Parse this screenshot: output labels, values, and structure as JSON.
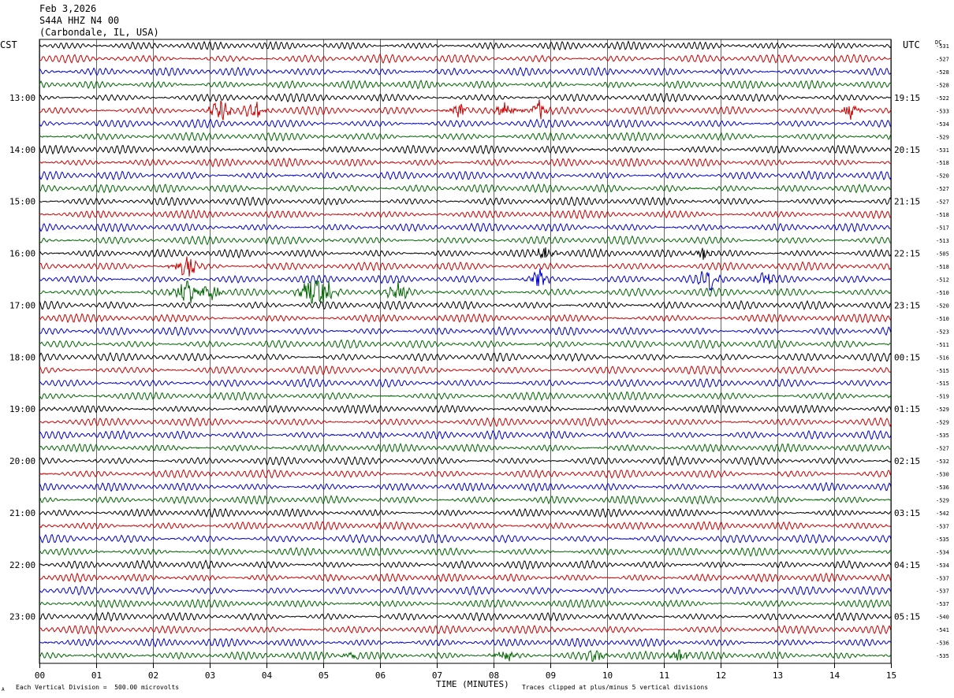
{
  "header": {
    "date": "Feb 3,2026",
    "station": "S44A HHZ N4 00",
    "location": "(Carbondale, IL, USA)"
  },
  "left_timezone": "CST",
  "right_timezone": "UTC",
  "dc_label": "DC",
  "footer": {
    "division": "Each Vertical Division =  500.00 microvolts",
    "clipped": "Traces clipped at plus/minus 5 vertical divisions",
    "corner_mark": "A"
  },
  "colors": {
    "trace_cycle": [
      "#000000",
      "#cc0000",
      "#0000cc",
      "#006600"
    ],
    "grid": "#000000",
    "background": "#ffffff"
  },
  "chart_data": {
    "type": "line",
    "title": "",
    "xlabel": "TIME (MINUTES)",
    "ylabel": "",
    "xlim": [
      0,
      15
    ],
    "x_ticks": [
      "00",
      "01",
      "02",
      "03",
      "04",
      "05",
      "06",
      "07",
      "08",
      "09",
      "10",
      "11",
      "12",
      "13",
      "14",
      "15"
    ],
    "grid": true,
    "trace_count": 48,
    "left_hour_labels": [
      "13:00",
      "14:00",
      "15:00",
      "16:00",
      "17:00",
      "18:00",
      "19:00",
      "20:00",
      "21:00",
      "22:00",
      "23:00"
    ],
    "right_hour_labels": [
      "19:15",
      "20:15",
      "21:15",
      "22:15",
      "23:15",
      "00:15",
      "01:15",
      "02:15",
      "03:15",
      "04:15",
      "05:15"
    ],
    "dc_offsets": [
      -531,
      -527,
      -528,
      -528,
      -522,
      -533,
      -534,
      -529,
      -531,
      -518,
      -520,
      -527,
      -527,
      -518,
      -517,
      -513,
      -505,
      -518,
      -512,
      -510,
      -520,
      -510,
      -523,
      -511,
      -516,
      -515,
      -515,
      -519,
      -529,
      -529,
      -535,
      -527,
      -532,
      -530,
      -536,
      -529,
      -542,
      -537,
      -535,
      -534,
      -534,
      -537,
      -537,
      -537,
      -540,
      -541,
      -536,
      -535
    ],
    "events": [
      {
        "trace": 5,
        "minute": 3.2,
        "amp": 2.2
      },
      {
        "trace": 5,
        "minute": 3.8,
        "amp": 1.8
      },
      {
        "trace": 5,
        "minute": 7.4,
        "amp": 1.4
      },
      {
        "trace": 5,
        "minute": 8.2,
        "amp": 1.6
      },
      {
        "trace": 5,
        "minute": 8.8,
        "amp": 1.8
      },
      {
        "trace": 5,
        "minute": 14.3,
        "amp": 1.6
      },
      {
        "trace": 16,
        "minute": 8.9,
        "amp": 1.2
      },
      {
        "trace": 16,
        "minute": 11.7,
        "amp": 1.1
      },
      {
        "trace": 17,
        "minute": 2.6,
        "amp": 2.5
      },
      {
        "trace": 18,
        "minute": 8.8,
        "amp": 1.6
      },
      {
        "trace": 18,
        "minute": 11.8,
        "amp": 2.2
      },
      {
        "trace": 18,
        "minute": 12.8,
        "amp": 1.2
      },
      {
        "trace": 19,
        "minute": 2.6,
        "amp": 3.2
      },
      {
        "trace": 19,
        "minute": 3.0,
        "amp": 2.2
      },
      {
        "trace": 19,
        "minute": 4.8,
        "amp": 3.5
      },
      {
        "trace": 19,
        "minute": 5.0,
        "amp": 3.0
      },
      {
        "trace": 19,
        "minute": 6.3,
        "amp": 2.2
      },
      {
        "trace": 47,
        "minute": 8.2,
        "amp": 1.4
      },
      {
        "trace": 47,
        "minute": 9.8,
        "amp": 1.2
      },
      {
        "trace": 47,
        "minute": 11.3,
        "amp": 1.2
      },
      {
        "trace": 47,
        "minute": 5.5,
        "amp": 1.0
      }
    ]
  }
}
